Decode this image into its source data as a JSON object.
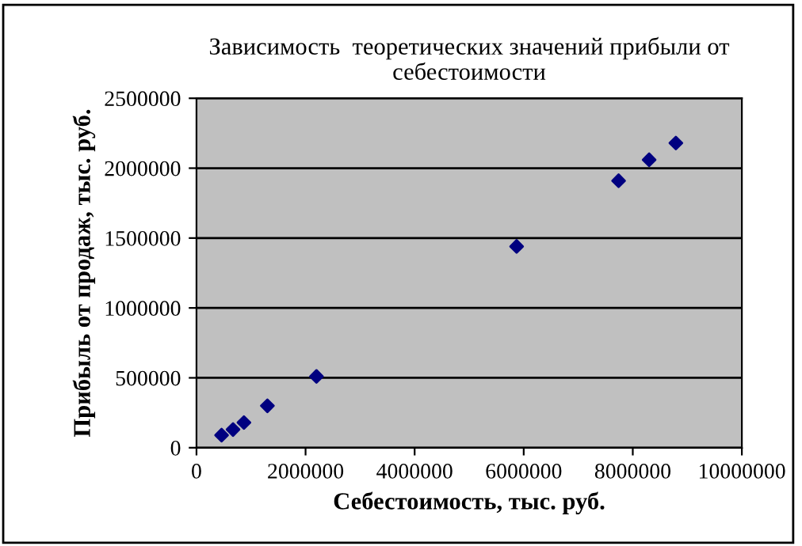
{
  "chart_data": {
    "type": "scatter",
    "title": "Зависимость  теоретических значений прибыли от себестоимости",
    "xlabel": "Себестоимость, тыс. руб.",
    "ylabel": "Прибыль от продаж, тыс. руб.",
    "series": [
      {
        "color": "#000080",
        "x": [
          460000,
          670000,
          870000,
          1300000,
          2200000,
          5870000,
          7740000,
          8300000,
          8790000
        ],
        "values": [
          90000,
          130000,
          180000,
          300000,
          510000,
          1440000,
          1910000,
          2060000,
          2180000
        ]
      }
    ],
    "xlim": [
      0,
      10000000
    ],
    "xticks": [
      0,
      2000000,
      4000000,
      6000000,
      8000000,
      10000000
    ],
    "ylim": [
      0,
      2500000
    ],
    "yticks": [
      0,
      500000,
      1000000,
      1500000,
      2000000,
      2500000
    ],
    "grid": "y",
    "marker": "diamond",
    "legend": false
  }
}
